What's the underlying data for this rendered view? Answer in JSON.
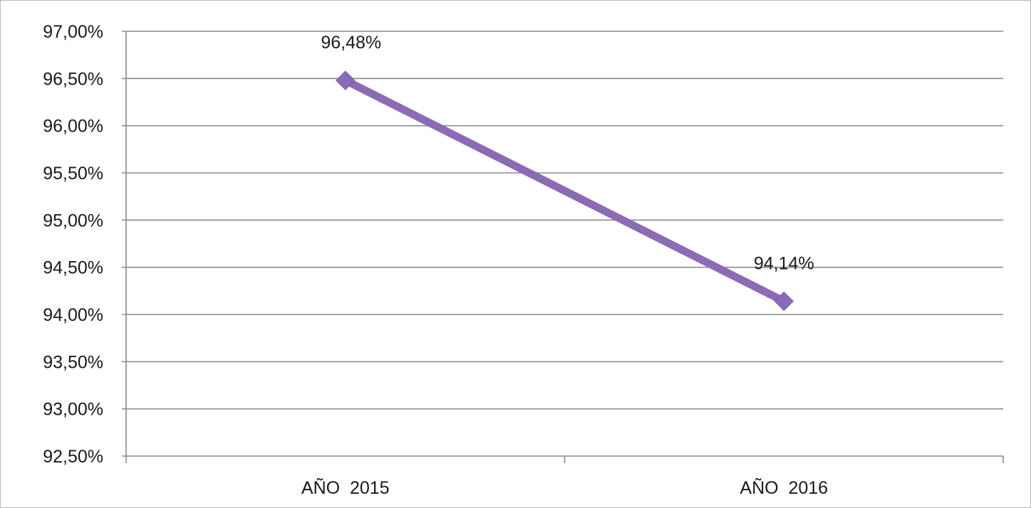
{
  "chart_data": {
    "type": "line",
    "title": "",
    "xlabel": "",
    "ylabel": "",
    "categories": [
      "AÑO  2015",
      "AÑO  2016"
    ],
    "series": [
      {
        "values": [
          96.48,
          94.14
        ],
        "data_labels": [
          "96,48%",
          "94,14%"
        ],
        "color": "#8b6bb5"
      }
    ],
    "ylim": [
      92.5,
      97.0
    ],
    "y_ticks": [
      97.0,
      96.5,
      96.0,
      95.5,
      95.0,
      94.5,
      94.0,
      93.5,
      93.0,
      92.5
    ],
    "y_tick_labels": [
      "97,00%",
      "96,50%",
      "96,00%",
      "95,50%",
      "95,00%",
      "94,50%",
      "94,00%",
      "93,50%",
      "93,00%",
      "92,50%"
    ],
    "grid": true,
    "legend": "none",
    "marker": "diamond"
  }
}
